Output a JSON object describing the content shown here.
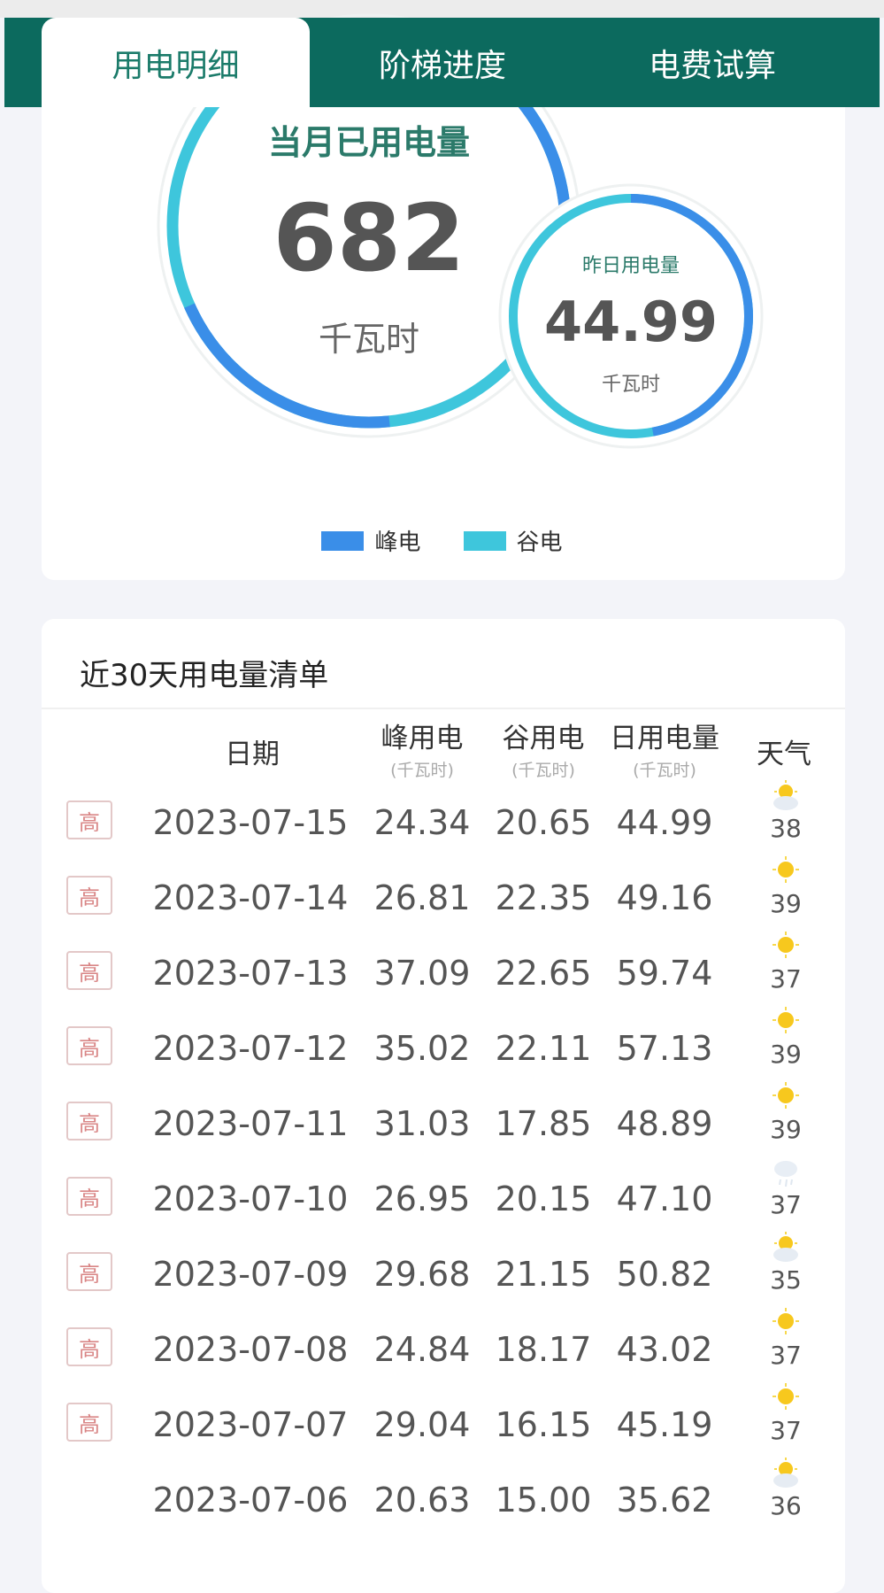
{
  "tabs": [
    {
      "label": "用电明细",
      "active": true
    },
    {
      "label": "阶梯进度"
    },
    {
      "label": "电费试算"
    }
  ],
  "summary": {
    "month_title": "当月已用电量",
    "month_value": "682",
    "month_unit": "千瓦时",
    "yesterday_title": "昨日用电量",
    "yesterday_value": "44.99",
    "yesterday_unit": "千瓦时"
  },
  "legend": [
    {
      "label": "峰电",
      "color": "#3a8ee8"
    },
    {
      "label": "谷电",
      "color": "#3ec6dc"
    }
  ],
  "list": {
    "title": "近30天用电量清单",
    "headers": {
      "date": "日期",
      "peak": "峰用电",
      "valley": "谷用电",
      "daily": "日用电量",
      "weather": "天气",
      "unit": "(千瓦时)"
    },
    "high_badge": "高",
    "rows": [
      {
        "date": "2023-07-15",
        "peak": "24.34",
        "valley": "20.65",
        "daily": "44.99",
        "weather": "sun-cloud",
        "temp": "38",
        "high": true
      },
      {
        "date": "2023-07-14",
        "peak": "26.81",
        "valley": "22.35",
        "daily": "49.16",
        "weather": "sun",
        "temp": "39",
        "high": true
      },
      {
        "date": "2023-07-13",
        "peak": "37.09",
        "valley": "22.65",
        "daily": "59.74",
        "weather": "sun",
        "temp": "37",
        "high": true
      },
      {
        "date": "2023-07-12",
        "peak": "35.02",
        "valley": "22.11",
        "daily": "57.13",
        "weather": "sun",
        "temp": "39",
        "high": true
      },
      {
        "date": "2023-07-11",
        "peak": "31.03",
        "valley": "17.85",
        "daily": "48.89",
        "weather": "sun",
        "temp": "39",
        "high": true
      },
      {
        "date": "2023-07-10",
        "peak": "26.95",
        "valley": "20.15",
        "daily": "47.10",
        "weather": "cloud-rain",
        "temp": "37",
        "high": true
      },
      {
        "date": "2023-07-09",
        "peak": "29.68",
        "valley": "21.15",
        "daily": "50.82",
        "weather": "sun-cloud",
        "temp": "35",
        "high": true
      },
      {
        "date": "2023-07-08",
        "peak": "24.84",
        "valley": "18.17",
        "daily": "43.02",
        "weather": "sun",
        "temp": "37",
        "high": true
      },
      {
        "date": "2023-07-07",
        "peak": "29.04",
        "valley": "16.15",
        "daily": "45.19",
        "weather": "sun",
        "temp": "37",
        "high": true
      },
      {
        "date": "2023-07-06",
        "peak": "20.63",
        "valley": "15.00",
        "daily": "35.62",
        "weather": "sun-cloud",
        "temp": "36",
        "high": false
      }
    ]
  }
}
